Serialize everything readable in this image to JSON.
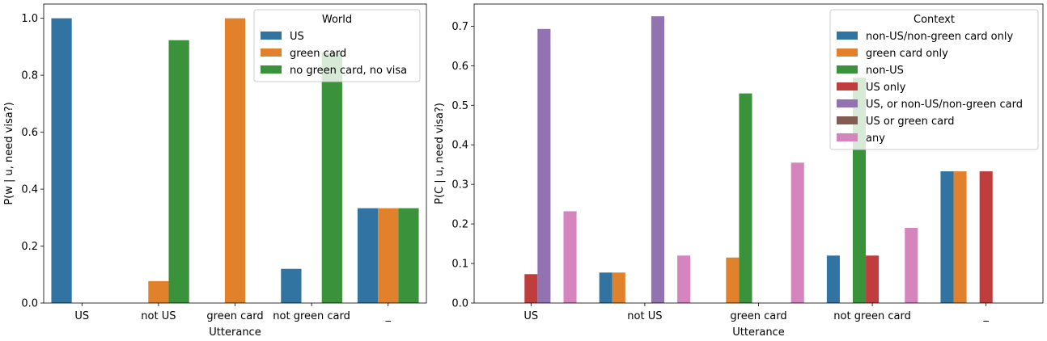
{
  "chart_data": [
    {
      "type": "bar",
      "xlabel": "Utterance",
      "ylabel": "P(w | u, need visa?)",
      "categories": [
        "US",
        "not US",
        "green card",
        "not green card",
        "_"
      ],
      "ylim": [
        0,
        1.05
      ],
      "yticks": [
        "0.0",
        "0.2",
        "0.4",
        "0.6",
        "0.8",
        "1.0"
      ],
      "grid": false,
      "legend": {
        "title": "World",
        "placement": "top-right"
      },
      "series": [
        {
          "name": "US",
          "color": "#3274a1",
          "values": [
            1.0,
            0.0,
            0.0,
            0.12,
            0.333
          ]
        },
        {
          "name": "green card",
          "color": "#e1812c",
          "values": [
            0.0,
            0.077,
            1.0,
            0.0,
            0.333
          ]
        },
        {
          "name": "no green card, no visa",
          "color": "#3a923a",
          "values": [
            0.0,
            0.923,
            0.0,
            0.88,
            0.333
          ]
        }
      ]
    },
    {
      "type": "bar",
      "xlabel": "Utterance",
      "ylabel": "P(C | u, need visa?)",
      "categories": [
        "US",
        "not US",
        "green card",
        "not green card",
        "_"
      ],
      "ylim": [
        0,
        0.756
      ],
      "yticks": [
        "0.0",
        "0.1",
        "0.2",
        "0.3",
        "0.4",
        "0.5",
        "0.6",
        "0.7"
      ],
      "grid": false,
      "legend": {
        "title": "Context",
        "placement": "top-right"
      },
      "series": [
        {
          "name": "non-US/non-green card only",
          "color": "#3274a1",
          "values": [
            0.0,
            0.077,
            0.0,
            0.12,
            0.333
          ]
        },
        {
          "name": "green card only",
          "color": "#e1812c",
          "values": [
            0.0,
            0.077,
            0.115,
            0.0,
            0.333
          ]
        },
        {
          "name": "non-US",
          "color": "#3a923a",
          "values": [
            0.0,
            0.0,
            0.53,
            0.57,
            0.0
          ]
        },
        {
          "name": "US only",
          "color": "#c03d3e",
          "values": [
            0.073,
            0.0,
            0.0,
            0.12,
            0.333
          ]
        },
        {
          "name": "US, or non-US/non-green card",
          "color": "#9372b2",
          "values": [
            0.693,
            0.725,
            0.0,
            0.0,
            0.0
          ]
        },
        {
          "name": "US or green card",
          "color": "#845b53",
          "values": [
            0.0,
            0.0,
            0.0,
            0.0,
            0.0
          ]
        },
        {
          "name": "any",
          "color": "#d684bd",
          "values": [
            0.232,
            0.12,
            0.355,
            0.19,
            0.0
          ]
        }
      ]
    }
  ]
}
